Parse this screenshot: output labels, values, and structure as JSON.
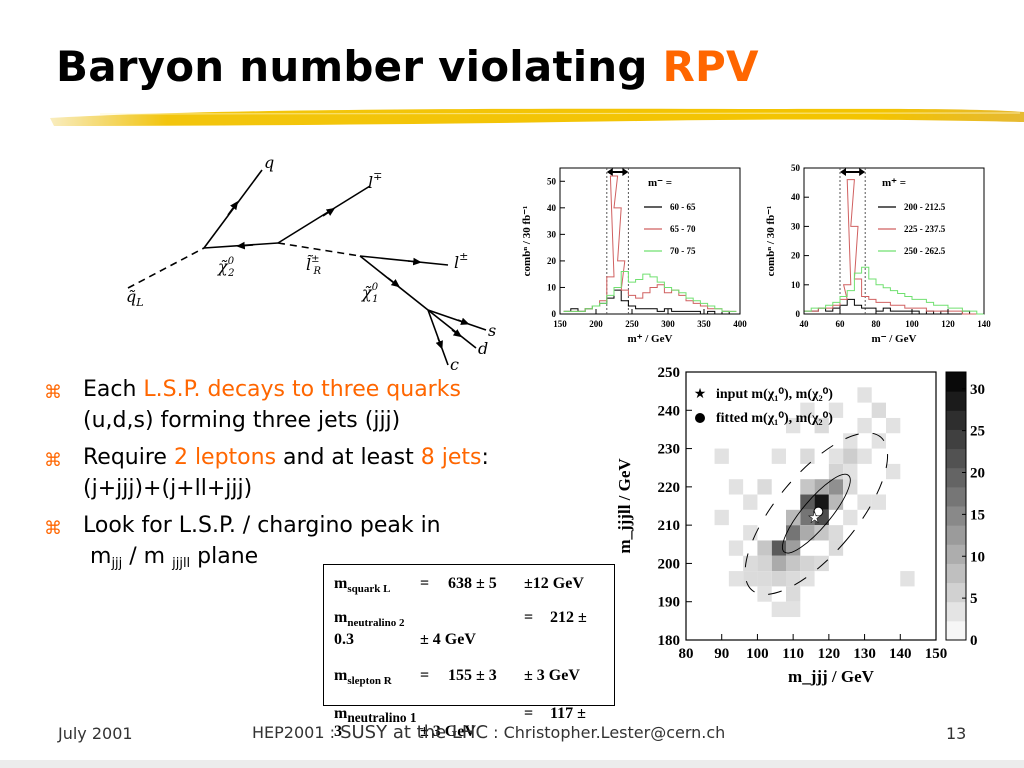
{
  "slide": {
    "title_main": "Baryon number violating",
    "title_accent": "RPV",
    "accent_color": "#ff6600"
  },
  "feynman": {
    "labels": {
      "q": "q",
      "qL": "q̃",
      "qL_sub": "L",
      "chi2": "χ̃",
      "chi2_sup": "0",
      "chi2_sub": "2",
      "lR": "l̃",
      "lR_sup": "±",
      "lR_sub": "R",
      "chi1": "χ̃",
      "chi1_sup": "0",
      "chi1_sub": "1",
      "lmp": "l",
      "lmp_sup": "∓",
      "lpm": "l",
      "lpm_sup": "±",
      "s": "s",
      "d": "d",
      "c": "c"
    }
  },
  "bullets": [
    {
      "lead": "Each ",
      "highlight": "L.S.P. decays to three quarks",
      "rest": "(u,d,s) forming three jets (jjj)"
    },
    {
      "lead": "Require ",
      "highlight1": "2 leptons",
      "mid": " and at least ",
      "highlight2": "8 jets",
      "tail": ":",
      "rest": "(j+jjj)+(j+ll+jjj)"
    },
    {
      "lead": "Look for L.S.P. / chargino peak in",
      "m1": "m",
      "m1_sub": "jjj",
      "sep": " / m ",
      "m2_sub": "jjjll",
      "tail": " plane"
    }
  ],
  "mass_table": {
    "rows": [
      {
        "m": "m",
        "sub": "squark L",
        "eq": "=",
        "val": "638 ± 5",
        "err": "±12 GeV"
      },
      {
        "m": "m",
        "sub": "neutralino 2",
        "eq": "=",
        "val": "212 ±",
        "err": ""
      },
      {
        "wrap": "0.3",
        "err": "±  4 GeV"
      },
      {
        "m": "m",
        "sub": "slepton R",
        "eq": "=",
        "val": "155 ± 3",
        "err": "±  3 GeV"
      }
    ],
    "overflow": {
      "m": "m",
      "sub": "neutralino 1",
      "eq": "=",
      "val": "117 ±",
      "wrap": "3",
      "err": "±  3 GeV"
    }
  },
  "footer": {
    "date": "July 2001",
    "conference": "HEP2001 :",
    "topic": "SUSY at the LHC",
    "sep": ":",
    "author": "Christopher.Lester@cern.ch",
    "page": "13"
  },
  "chart_data": [
    {
      "type": "line",
      "xlabel": "m⁺ / GeV",
      "ylabel": "combⁿ / 30 fb⁻¹",
      "xlim": [
        150,
        400
      ],
      "ylim": [
        0,
        55
      ],
      "xticks": [
        150,
        200,
        250,
        300,
        350,
        400
      ],
      "yticks": [
        0,
        10,
        20,
        30,
        40,
        50
      ],
      "legend_title": "m⁻ =",
      "window": [
        215,
        245
      ],
      "series": [
        {
          "name": "60 - 65",
          "color": "#000000",
          "x": [
            160,
            170,
            180,
            190,
            200,
            210,
            220,
            230,
            240,
            250,
            260,
            270,
            280,
            290,
            300,
            310,
            320,
            330,
            340,
            350,
            360,
            370,
            380,
            390
          ],
          "y": [
            1,
            2,
            1,
            2,
            3,
            4,
            6,
            9,
            5,
            3,
            2,
            2,
            2,
            1,
            2,
            1,
            1,
            1,
            1,
            0,
            1,
            0,
            1,
            0
          ]
        },
        {
          "name": "65 - 70",
          "color": "#d06060",
          "x": [
            160,
            170,
            180,
            190,
            200,
            210,
            220,
            225,
            230,
            235,
            240,
            250,
            260,
            270,
            280,
            290,
            300,
            310,
            320,
            330,
            340,
            350,
            360,
            370,
            380,
            390
          ],
          "y": [
            1,
            1,
            1,
            2,
            3,
            5,
            14,
            52,
            40,
            20,
            9,
            7,
            6,
            8,
            10,
            11,
            8,
            9,
            7,
            5,
            4,
            3,
            2,
            2,
            1,
            1
          ]
        },
        {
          "name": "70 - 75",
          "color": "#70e070",
          "x": [
            160,
            170,
            180,
            190,
            200,
            210,
            220,
            230,
            240,
            250,
            260,
            270,
            280,
            290,
            300,
            310,
            320,
            330,
            340,
            350,
            360,
            370,
            380,
            390
          ],
          "y": [
            1,
            1,
            1,
            2,
            3,
            4,
            7,
            10,
            16,
            12,
            13,
            15,
            14,
            12,
            10,
            9,
            8,
            6,
            5,
            4,
            3,
            2,
            1,
            1
          ]
        }
      ]
    },
    {
      "type": "line",
      "xlabel": "m⁻ / GeV",
      "ylabel": "combⁿ / 30 fb⁻¹",
      "xlim": [
        40,
        140
      ],
      "ylim": [
        0,
        50
      ],
      "xticks": [
        40,
        60,
        80,
        100,
        120,
        140
      ],
      "yticks": [
        0,
        10,
        20,
        30,
        40,
        50
      ],
      "legend_title": "m⁺ =",
      "window": [
        60,
        74
      ],
      "series": [
        {
          "name": "200 - 212.5",
          "color": "#000000",
          "x": [
            42,
            46,
            50,
            54,
            58,
            62,
            66,
            70,
            74,
            78,
            82,
            86,
            90,
            94,
            98,
            102,
            106,
            110,
            114,
            118,
            122,
            126,
            130,
            134,
            138
          ],
          "y": [
            1,
            1,
            2,
            1,
            2,
            3,
            5,
            3,
            2,
            2,
            1,
            2,
            1,
            1,
            1,
            1,
            0,
            1,
            0,
            1,
            0,
            0,
            1,
            0,
            0
          ]
        },
        {
          "name": "225 - 237.5",
          "color": "#d06060",
          "x": [
            42,
            46,
            50,
            54,
            58,
            62,
            64,
            66,
            68,
            70,
            74,
            78,
            82,
            86,
            90,
            94,
            98,
            102,
            106,
            110,
            114,
            118,
            122,
            126,
            130,
            134,
            138
          ],
          "y": [
            1,
            1,
            2,
            2,
            3,
            5,
            10,
            46,
            30,
            12,
            6,
            5,
            4,
            4,
            3,
            3,
            2,
            2,
            2,
            1,
            1,
            1,
            1,
            1,
            0,
            0,
            0
          ]
        },
        {
          "name": "250 - 262.5",
          "color": "#70e070",
          "x": [
            42,
            46,
            50,
            54,
            58,
            62,
            66,
            70,
            74,
            78,
            82,
            86,
            90,
            94,
            98,
            102,
            106,
            110,
            114,
            118,
            122,
            126,
            130,
            134,
            138
          ],
          "y": [
            1,
            2,
            2,
            3,
            4,
            6,
            8,
            14,
            16,
            12,
            10,
            9,
            8,
            7,
            6,
            5,
            5,
            4,
            3,
            3,
            2,
            2,
            1,
            1,
            0
          ]
        }
      ]
    },
    {
      "type": "heatmap",
      "xlabel": "m_jjj / GeV",
      "ylabel": "m_jjjll / GeV",
      "xlim": [
        80,
        150
      ],
      "ylim": [
        180,
        250
      ],
      "xticks": [
        80,
        90,
        100,
        110,
        120,
        130,
        140,
        150
      ],
      "yticks": [
        180,
        190,
        200,
        210,
        220,
        230,
        240,
        250
      ],
      "zlim": [
        0,
        32
      ],
      "zticks": [
        0,
        5,
        10,
        15,
        20,
        25,
        30
      ],
      "legend": [
        "input m(χ₁⁰), m(χ₂⁰)",
        "fitted m(χ₁⁰), m(χ₂⁰)"
      ],
      "input_point": [
        116,
        212
      ],
      "fitted_point": [
        116.5,
        213
      ],
      "cells": [
        {
          "x": 118,
          "y": 216,
          "v": 32
        },
        {
          "x": 114,
          "y": 216,
          "v": 22
        },
        {
          "x": 118,
          "y": 212,
          "v": 24
        },
        {
          "x": 114,
          "y": 212,
          "v": 18
        },
        {
          "x": 110,
          "y": 208,
          "v": 18
        },
        {
          "x": 106,
          "y": 204,
          "v": 22
        },
        {
          "x": 110,
          "y": 204,
          "v": 12
        },
        {
          "x": 106,
          "y": 200,
          "v": 10
        },
        {
          "x": 122,
          "y": 220,
          "v": 14
        },
        {
          "x": 118,
          "y": 220,
          "v": 10
        },
        {
          "x": 122,
          "y": 216,
          "v": 8
        },
        {
          "x": 114,
          "y": 220,
          "v": 6
        },
        {
          "x": 110,
          "y": 212,
          "v": 8
        },
        {
          "x": 102,
          "y": 204,
          "v": 6
        },
        {
          "x": 110,
          "y": 200,
          "v": 6
        },
        {
          "x": 114,
          "y": 208,
          "v": 10
        },
        {
          "x": 118,
          "y": 208,
          "v": 6
        },
        {
          "x": 102,
          "y": 200,
          "v": 4
        },
        {
          "x": 106,
          "y": 196,
          "v": 4
        },
        {
          "x": 110,
          "y": 196,
          "v": 3
        },
        {
          "x": 114,
          "y": 196,
          "v": 2
        },
        {
          "x": 110,
          "y": 192,
          "v": 3
        },
        {
          "x": 106,
          "y": 188,
          "v": 2
        },
        {
          "x": 110,
          "y": 188,
          "v": 2
        },
        {
          "x": 98,
          "y": 196,
          "v": 3
        },
        {
          "x": 102,
          "y": 196,
          "v": 3
        },
        {
          "x": 94,
          "y": 204,
          "v": 2
        },
        {
          "x": 90,
          "y": 212,
          "v": 2
        },
        {
          "x": 94,
          "y": 220,
          "v": 2
        },
        {
          "x": 98,
          "y": 216,
          "v": 2
        },
        {
          "x": 102,
          "y": 220,
          "v": 3
        },
        {
          "x": 106,
          "y": 228,
          "v": 2
        },
        {
          "x": 114,
          "y": 228,
          "v": 3
        },
        {
          "x": 122,
          "y": 224,
          "v": 4
        },
        {
          "x": 126,
          "y": 220,
          "v": 3
        },
        {
          "x": 126,
          "y": 224,
          "v": 2
        },
        {
          "x": 122,
          "y": 228,
          "v": 2
        },
        {
          "x": 126,
          "y": 232,
          "v": 2
        },
        {
          "x": 130,
          "y": 236,
          "v": 2
        },
        {
          "x": 134,
          "y": 240,
          "v": 3
        },
        {
          "x": 130,
          "y": 244,
          "v": 2
        },
        {
          "x": 118,
          "y": 236,
          "v": 3
        },
        {
          "x": 122,
          "y": 240,
          "v": 2
        },
        {
          "x": 114,
          "y": 240,
          "v": 2
        },
        {
          "x": 110,
          "y": 236,
          "v": 2
        },
        {
          "x": 126,
          "y": 228,
          "v": 5
        },
        {
          "x": 130,
          "y": 228,
          "v": 2
        },
        {
          "x": 134,
          "y": 232,
          "v": 2
        },
        {
          "x": 138,
          "y": 236,
          "v": 2
        },
        {
          "x": 98,
          "y": 200,
          "v": 3
        },
        {
          "x": 102,
          "y": 192,
          "v": 2
        },
        {
          "x": 94,
          "y": 196,
          "v": 2
        },
        {
          "x": 90,
          "y": 228,
          "v": 2
        },
        {
          "x": 114,
          "y": 200,
          "v": 4
        },
        {
          "x": 118,
          "y": 200,
          "v": 3
        },
        {
          "x": 122,
          "y": 204,
          "v": 3
        },
        {
          "x": 122,
          "y": 208,
          "v": 3
        },
        {
          "x": 126,
          "y": 212,
          "v": 2
        },
        {
          "x": 130,
          "y": 216,
          "v": 2
        },
        {
          "x": 98,
          "y": 208,
          "v": 2
        },
        {
          "x": 134,
          "y": 216,
          "v": 2
        },
        {
          "x": 138,
          "y": 224,
          "v": 2
        },
        {
          "x": 142,
          "y": 196,
          "v": 2
        }
      ]
    }
  ]
}
